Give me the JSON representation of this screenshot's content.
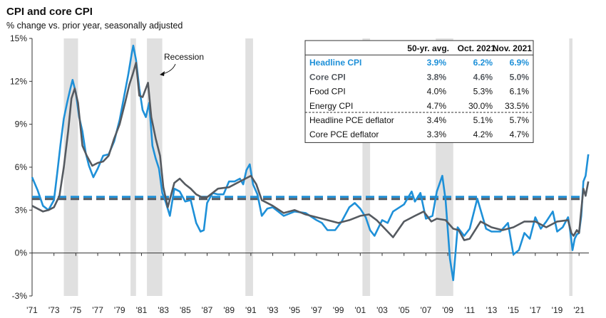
{
  "chart_data": {
    "type": "line",
    "title": "CPI and core CPI",
    "subtitle": "% change vs. prior year, seasonally adjusted",
    "ylim": [
      -3,
      15
    ],
    "y_ticks": [
      "-3%",
      "0%",
      "3%",
      "6%",
      "9%",
      "12%",
      "15%"
    ],
    "x_ticks": [
      "'71",
      "'73",
      "'75",
      "'77",
      "'79",
      "'81",
      "'83",
      "'85",
      "'87",
      "'89",
      "'91",
      "'93",
      "'95",
      "'97",
      "'99",
      "'01",
      "'03",
      "'05",
      "'07",
      "'09",
      "'11",
      "'13",
      "'15",
      "'17",
      "'19",
      "'21"
    ],
    "x_range": [
      1971.0,
      2021.9
    ],
    "recession_label": "Recession",
    "recessions": [
      [
        1973.9,
        1975.2
      ],
      [
        1980.0,
        1980.5
      ],
      [
        1981.5,
        1982.9
      ],
      [
        1990.5,
        1991.2
      ],
      [
        2001.2,
        2001.9
      ],
      [
        2007.9,
        2009.5
      ],
      [
        2020.1,
        2020.4
      ]
    ],
    "colors": {
      "headline": "#1e90d8",
      "core": "#555a60",
      "recession": "#e0e0e0"
    },
    "series": [
      {
        "name": "Headline CPI",
        "avg": 3.9,
        "x": [
          1971.0,
          1971.5,
          1972.0,
          1972.5,
          1973.0,
          1973.3,
          1973.6,
          1973.9,
          1974.2,
          1974.5,
          1974.7,
          1975.0,
          1975.3,
          1975.6,
          1975.9,
          1976.2,
          1976.6,
          1977.0,
          1977.5,
          1978.0,
          1978.5,
          1979.0,
          1979.4,
          1979.8,
          1980.1,
          1980.25,
          1980.5,
          1980.8,
          1981.1,
          1981.4,
          1981.7,
          1982.0,
          1982.3,
          1982.6,
          1982.9,
          1983.2,
          1983.6,
          1984.0,
          1984.5,
          1985.0,
          1985.5,
          1986.0,
          1986.4,
          1986.7,
          1987.0,
          1987.5,
          1988.0,
          1988.5,
          1989.0,
          1989.5,
          1990.0,
          1990.3,
          1990.6,
          1990.9,
          1991.2,
          1991.6,
          1992.0,
          1992.5,
          1993.0,
          1994.0,
          1995.0,
          1996.0,
          1997.0,
          1997.5,
          1998.0,
          1998.7,
          1999.3,
          2000.0,
          2000.5,
          2001.0,
          2001.5,
          2001.9,
          2002.3,
          2003.0,
          2003.5,
          2004.0,
          2005.0,
          2005.7,
          2006.0,
          2006.5,
          2007.0,
          2007.6,
          2008.0,
          2008.5,
          2008.8,
          2009.2,
          2009.5,
          2009.9,
          2010.5,
          2011.0,
          2011.7,
          2012.5,
          2013.0,
          2013.8,
          2014.5,
          2015.0,
          2015.5,
          2016.0,
          2016.5,
          2017.0,
          2017.5,
          2018.0,
          2018.6,
          2019.0,
          2019.5,
          2020.0,
          2020.2,
          2020.4,
          2020.6,
          2020.8,
          2021.0,
          2021.2,
          2021.4,
          2021.6,
          2021.85
        ],
        "y": [
          5.3,
          4.4,
          3.3,
          3.0,
          3.7,
          5.6,
          7.6,
          9.4,
          10.5,
          11.5,
          12.1,
          11.2,
          9.5,
          8.5,
          7.0,
          6.1,
          5.3,
          5.9,
          6.8,
          6.9,
          7.8,
          9.3,
          10.9,
          12.5,
          13.9,
          14.5,
          13.5,
          11.5,
          10.0,
          9.5,
          10.5,
          7.5,
          6.6,
          5.9,
          4.2,
          3.6,
          2.6,
          4.5,
          4.3,
          3.6,
          3.7,
          2.1,
          1.5,
          1.6,
          3.5,
          4.2,
          4.1,
          4.1,
          5.0,
          5.0,
          5.2,
          4.8,
          5.8,
          6.2,
          4.8,
          4.1,
          2.6,
          3.1,
          3.2,
          2.6,
          2.9,
          2.8,
          2.3,
          2.1,
          1.6,
          1.6,
          2.2,
          3.2,
          3.5,
          3.1,
          2.5,
          1.6,
          1.2,
          2.3,
          2.1,
          2.9,
          3.4,
          4.3,
          3.6,
          4.2,
          2.4,
          2.6,
          4.3,
          5.4,
          3.7,
          -0.4,
          -1.9,
          1.8,
          1.2,
          1.7,
          3.8,
          1.7,
          1.5,
          1.5,
          2.1,
          -0.1,
          0.2,
          1.4,
          1.0,
          2.5,
          1.7,
          2.2,
          2.9,
          1.5,
          1.8,
          2.5,
          1.5,
          0.2,
          1.0,
          1.3,
          1.4,
          2.6,
          5.0,
          5.4,
          6.9
        ]
      },
      {
        "name": "Core CPI",
        "avg": 3.8,
        "x": [
          1971.0,
          1971.5,
          1972.0,
          1972.5,
          1973.0,
          1973.5,
          1973.9,
          1974.3,
          1974.6,
          1974.9,
          1975.2,
          1975.6,
          1976.0,
          1976.5,
          1977.0,
          1977.5,
          1978.0,
          1978.5,
          1979.0,
          1979.5,
          1979.9,
          1980.2,
          1980.5,
          1980.8,
          1981.1,
          1981.4,
          1981.6,
          1981.9,
          1982.3,
          1982.7,
          1983.0,
          1983.4,
          1984.0,
          1984.5,
          1985.0,
          1985.5,
          1986.0,
          1986.5,
          1987.0,
          1987.5,
          1988.0,
          1989.0,
          1990.0,
          1990.5,
          1991.0,
          1991.5,
          1992.0,
          1993.0,
          1994.0,
          1995.0,
          1996.0,
          1997.0,
          1998.0,
          1999.0,
          2000.0,
          2001.0,
          2001.8,
          2002.5,
          2003.5,
          2004.0,
          2005.0,
          2006.0,
          2006.8,
          2007.5,
          2008.0,
          2008.8,
          2009.5,
          2010.0,
          2010.5,
          2011.0,
          2012.0,
          2013.0,
          2014.0,
          2015.0,
          2016.0,
          2017.0,
          2018.0,
          2019.0,
          2020.0,
          2020.3,
          2020.5,
          2020.8,
          2021.0,
          2021.2,
          2021.4,
          2021.6,
          2021.85
        ],
        "y": [
          3.3,
          3.1,
          2.9,
          3.0,
          3.2,
          4.0,
          6.0,
          8.5,
          10.8,
          11.5,
          10.5,
          7.5,
          6.8,
          6.1,
          6.3,
          6.4,
          6.8,
          8.0,
          9.0,
          10.5,
          11.8,
          12.5,
          13.3,
          11.0,
          10.9,
          11.5,
          11.9,
          9.5,
          8.0,
          6.8,
          4.6,
          3.2,
          4.9,
          5.2,
          4.8,
          4.5,
          4.1,
          3.9,
          3.9,
          4.2,
          4.5,
          4.6,
          5.0,
          5.2,
          5.4,
          4.8,
          3.7,
          3.3,
          2.8,
          3.0,
          2.7,
          2.5,
          2.3,
          2.1,
          2.3,
          2.6,
          2.7,
          2.3,
          1.5,
          1.1,
          2.2,
          2.6,
          2.9,
          2.2,
          2.4,
          2.3,
          1.7,
          1.6,
          0.9,
          1.0,
          2.2,
          1.8,
          1.6,
          1.8,
          2.2,
          2.2,
          1.8,
          2.2,
          2.3,
          1.4,
          1.2,
          1.6,
          1.4,
          3.0,
          4.5,
          4.0,
          5.0
        ]
      }
    ],
    "table": {
      "headers": [
        "",
        "50-yr. avg.",
        "Oct. 2021",
        "Nov. 2021"
      ],
      "rows": [
        {
          "label": "Headline CPI",
          "vals": [
            "3.9%",
            "6.2%",
            "6.9%"
          ],
          "style": "headline"
        },
        {
          "label": "Core CPI",
          "vals": [
            "3.8%",
            "4.6%",
            "5.0%"
          ],
          "style": "core"
        },
        {
          "label": "Food CPI",
          "vals": [
            "4.0%",
            "5.3%",
            "6.1%"
          ],
          "style": "plain"
        },
        {
          "label": "Energy CPI",
          "vals": [
            "4.7%",
            "30.0%",
            "33.5%"
          ],
          "style": "plain"
        },
        {
          "label": "Headline PCE deflator",
          "vals": [
            "3.4%",
            "5.1%",
            "5.7%"
          ],
          "style": "plain"
        },
        {
          "label": "Core PCE deflator",
          "vals": [
            "3.3%",
            "4.2%",
            "4.7%"
          ],
          "style": "plain"
        }
      ]
    }
  }
}
